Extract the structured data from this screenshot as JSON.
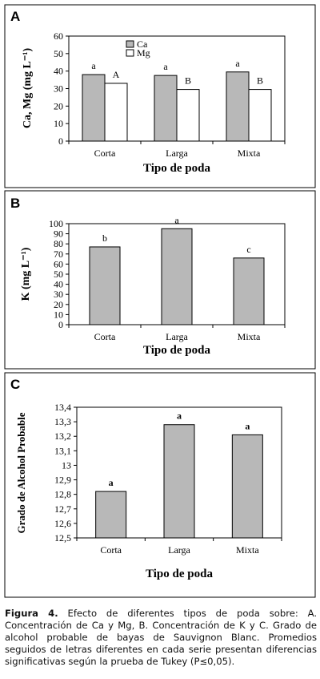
{
  "chart_data": [
    {
      "type": "bar",
      "panel_letter": "A",
      "categories": [
        "Corta",
        "Larga",
        "Mixta"
      ],
      "series": [
        {
          "name": "Ca",
          "values": [
            38,
            37.5,
            39.5
          ],
          "color": "#b8b8b8",
          "labels": [
            "a",
            "a",
            "a"
          ]
        },
        {
          "name": "Mg",
          "values": [
            33,
            29.5,
            29.5
          ],
          "color": "#ffffff",
          "labels": [
            "A",
            "B",
            "B"
          ]
        }
      ],
      "ylabel": "Ca, Mg (mg L⁻¹)",
      "xlabel": "Tipo de poda",
      "ylim": [
        0,
        60
      ],
      "yticks": [
        "0",
        "10",
        "20",
        "30",
        "40",
        "50",
        "60"
      ],
      "legend": "top-center",
      "grid": false
    },
    {
      "type": "bar",
      "panel_letter": "B",
      "categories": [
        "Corta",
        "Larga",
        "Mixta"
      ],
      "series": [
        {
          "values": [
            77,
            95,
            66
          ],
          "color": "#b8b8b8",
          "labels": [
            "b",
            "a",
            "c"
          ]
        }
      ],
      "ylabel": "K (mg L⁻¹)",
      "xlabel": "Tipo de poda",
      "ylim": [
        0,
        100
      ],
      "yticks": [
        "0",
        "10",
        "20",
        "30",
        "40",
        "50",
        "60",
        "70",
        "80",
        "90",
        "100"
      ],
      "grid": false
    },
    {
      "type": "bar",
      "panel_letter": "C",
      "categories": [
        "Corta",
        "Larga",
        "Mixta"
      ],
      "series": [
        {
          "values": [
            12.82,
            13.28,
            13.21
          ],
          "color": "#b8b8b8",
          "labels": [
            "a",
            "a",
            "a"
          ]
        }
      ],
      "ylabel": "Grado de Alcohol Probable",
      "xlabel": "Tipo de poda",
      "ylim": [
        12.5,
        13.4
      ],
      "yticks": [
        "12,5",
        "12,6",
        "12,7",
        "12,8",
        "12,9",
        "13",
        "13,1",
        "13,2",
        "13,3",
        "13,4"
      ],
      "grid": false
    }
  ],
  "caption": {
    "label": "Figura 4.",
    "text": "Efecto de diferentes tipos de poda sobre: A. Concentración de Ca y Mg, B. Concentración de K y C. Grado de alcohol probable de bayas de Sauvignon Blanc. Promedios seguidos de letras diferentes en cada serie presentan diferencias significativas según la prueba de Tukey (P≤0,05)."
  }
}
